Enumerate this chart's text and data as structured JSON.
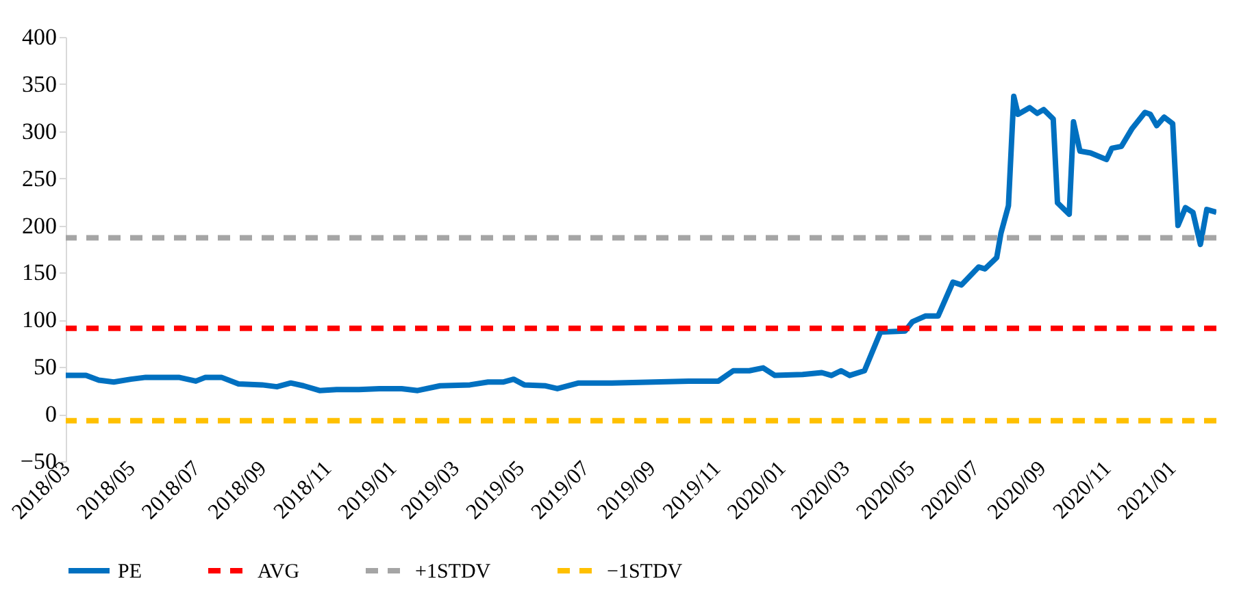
{
  "chart_data": {
    "type": "line",
    "x": [
      "2018-03-01",
      "2018-03-20",
      "2018-04-01",
      "2018-04-15",
      "2018-05-01",
      "2018-05-15",
      "2018-06-15",
      "2018-07-01",
      "2018-07-10",
      "2018-07-25",
      "2018-08-10",
      "2018-09-01",
      "2018-09-15",
      "2018-09-28",
      "2018-10-10",
      "2018-10-25",
      "2018-11-10",
      "2018-12-01",
      "2018-12-20",
      "2019-01-10",
      "2019-01-25",
      "2019-02-15",
      "2019-03-15",
      "2019-04-01",
      "2019-04-15",
      "2019-04-25",
      "2019-05-05",
      "2019-05-25",
      "2019-06-05",
      "2019-06-25",
      "2019-07-26",
      "2019-10-06",
      "2019-11-03",
      "2019-11-17",
      "2019-12-02",
      "2019-12-15",
      "2019-12-26",
      "2020-01-21",
      "2020-02-08",
      "2020-02-17",
      "2020-02-26",
      "2020-03-05",
      "2020-03-19",
      "2020-04-03",
      "2020-04-26",
      "2020-05-03",
      "2020-05-15",
      "2020-05-27",
      "2020-06-10",
      "2020-06-18",
      "2020-07-04",
      "2020-07-10",
      "2020-07-21",
      "2020-07-25",
      "2020-08-01",
      "2020-08-06",
      "2020-08-10",
      "2020-08-21",
      "2020-08-28",
      "2020-09-03",
      "2020-09-12",
      "2020-09-16",
      "2020-09-27",
      "2020-10-01",
      "2020-10-07",
      "2020-10-17",
      "2020-11-01",
      "2020-11-06",
      "2020-11-15",
      "2020-11-25",
      "2020-12-07",
      "2020-12-12",
      "2020-12-18",
      "2020-12-25",
      "2021-01-02",
      "2021-01-07",
      "2021-01-14",
      "2021-01-21",
      "2021-01-28",
      "2021-02-03",
      "2021-02-12"
    ],
    "series": [
      {
        "name": "PE",
        "color": "#0070c0",
        "values": [
          41,
          41,
          36,
          34,
          37,
          39,
          39,
          35,
          39,
          39,
          32,
          31,
          29,
          33,
          30,
          25,
          26,
          26,
          27,
          27,
          25,
          30,
          31,
          34,
          34,
          37,
          31,
          30,
          27,
          33,
          33,
          35,
          35,
          46,
          46,
          49,
          41,
          42,
          44,
          41,
          46,
          41,
          46,
          87,
          88,
          98,
          104,
          104,
          140,
          137,
          156,
          154,
          166,
          192,
          221,
          337,
          318,
          325,
          319,
          323,
          313,
          224,
          212,
          310,
          279,
          277,
          270,
          282,
          284,
          303,
          320,
          318,
          306,
          315,
          308,
          200,
          219,
          214,
          180,
          217,
          214
        ]
      }
    ],
    "ref_lines": [
      {
        "axis": "y",
        "value": 91,
        "label": "AVG",
        "color": "#ff0000",
        "line_style": "dashed"
      },
      {
        "axis": "y",
        "value": 187,
        "label": "+1STDV",
        "color": "#a5a5a5",
        "line_style": "dashed"
      },
      {
        "axis": "y",
        "value": -7,
        "label": "−1STDV",
        "color": "#ffc000",
        "line_style": "dashed"
      }
    ],
    "xlim": [
      "2018-03-01",
      "2021-02-12"
    ],
    "xticks": [
      {
        "value": "2018-03",
        "label": "2018/03"
      },
      {
        "value": "2018-05",
        "label": "2018/05"
      },
      {
        "value": "2018-07",
        "label": "2018/07"
      },
      {
        "value": "2018-09",
        "label": "2018/09"
      },
      {
        "value": "2018-11",
        "label": "2018/11"
      },
      {
        "value": "2019-01",
        "label": "2019/01"
      },
      {
        "value": "2019-03",
        "label": "2019/03"
      },
      {
        "value": "2019-05",
        "label": "2019/05"
      },
      {
        "value": "2019-07",
        "label": "2019/07"
      },
      {
        "value": "2019-09",
        "label": "2019/09"
      },
      {
        "value": "2019-11",
        "label": "2019/11"
      },
      {
        "value": "2020-01",
        "label": "2020/01"
      },
      {
        "value": "2020-03",
        "label": "2020/03"
      },
      {
        "value": "2020-05",
        "label": "2020/05"
      },
      {
        "value": "2020-07",
        "label": "2020/07"
      },
      {
        "value": "2020-09",
        "label": "2020/09"
      },
      {
        "value": "2020-11",
        "label": "2020/11"
      },
      {
        "value": "2021-01",
        "label": "2021/01"
      }
    ],
    "ylim": [
      -50,
      400
    ],
    "yticks": [
      -50,
      0,
      50,
      100,
      150,
      200,
      250,
      300,
      350,
      400
    ],
    "grid": false,
    "legend": "bottom",
    "line_style": "solid",
    "marker": "none"
  }
}
